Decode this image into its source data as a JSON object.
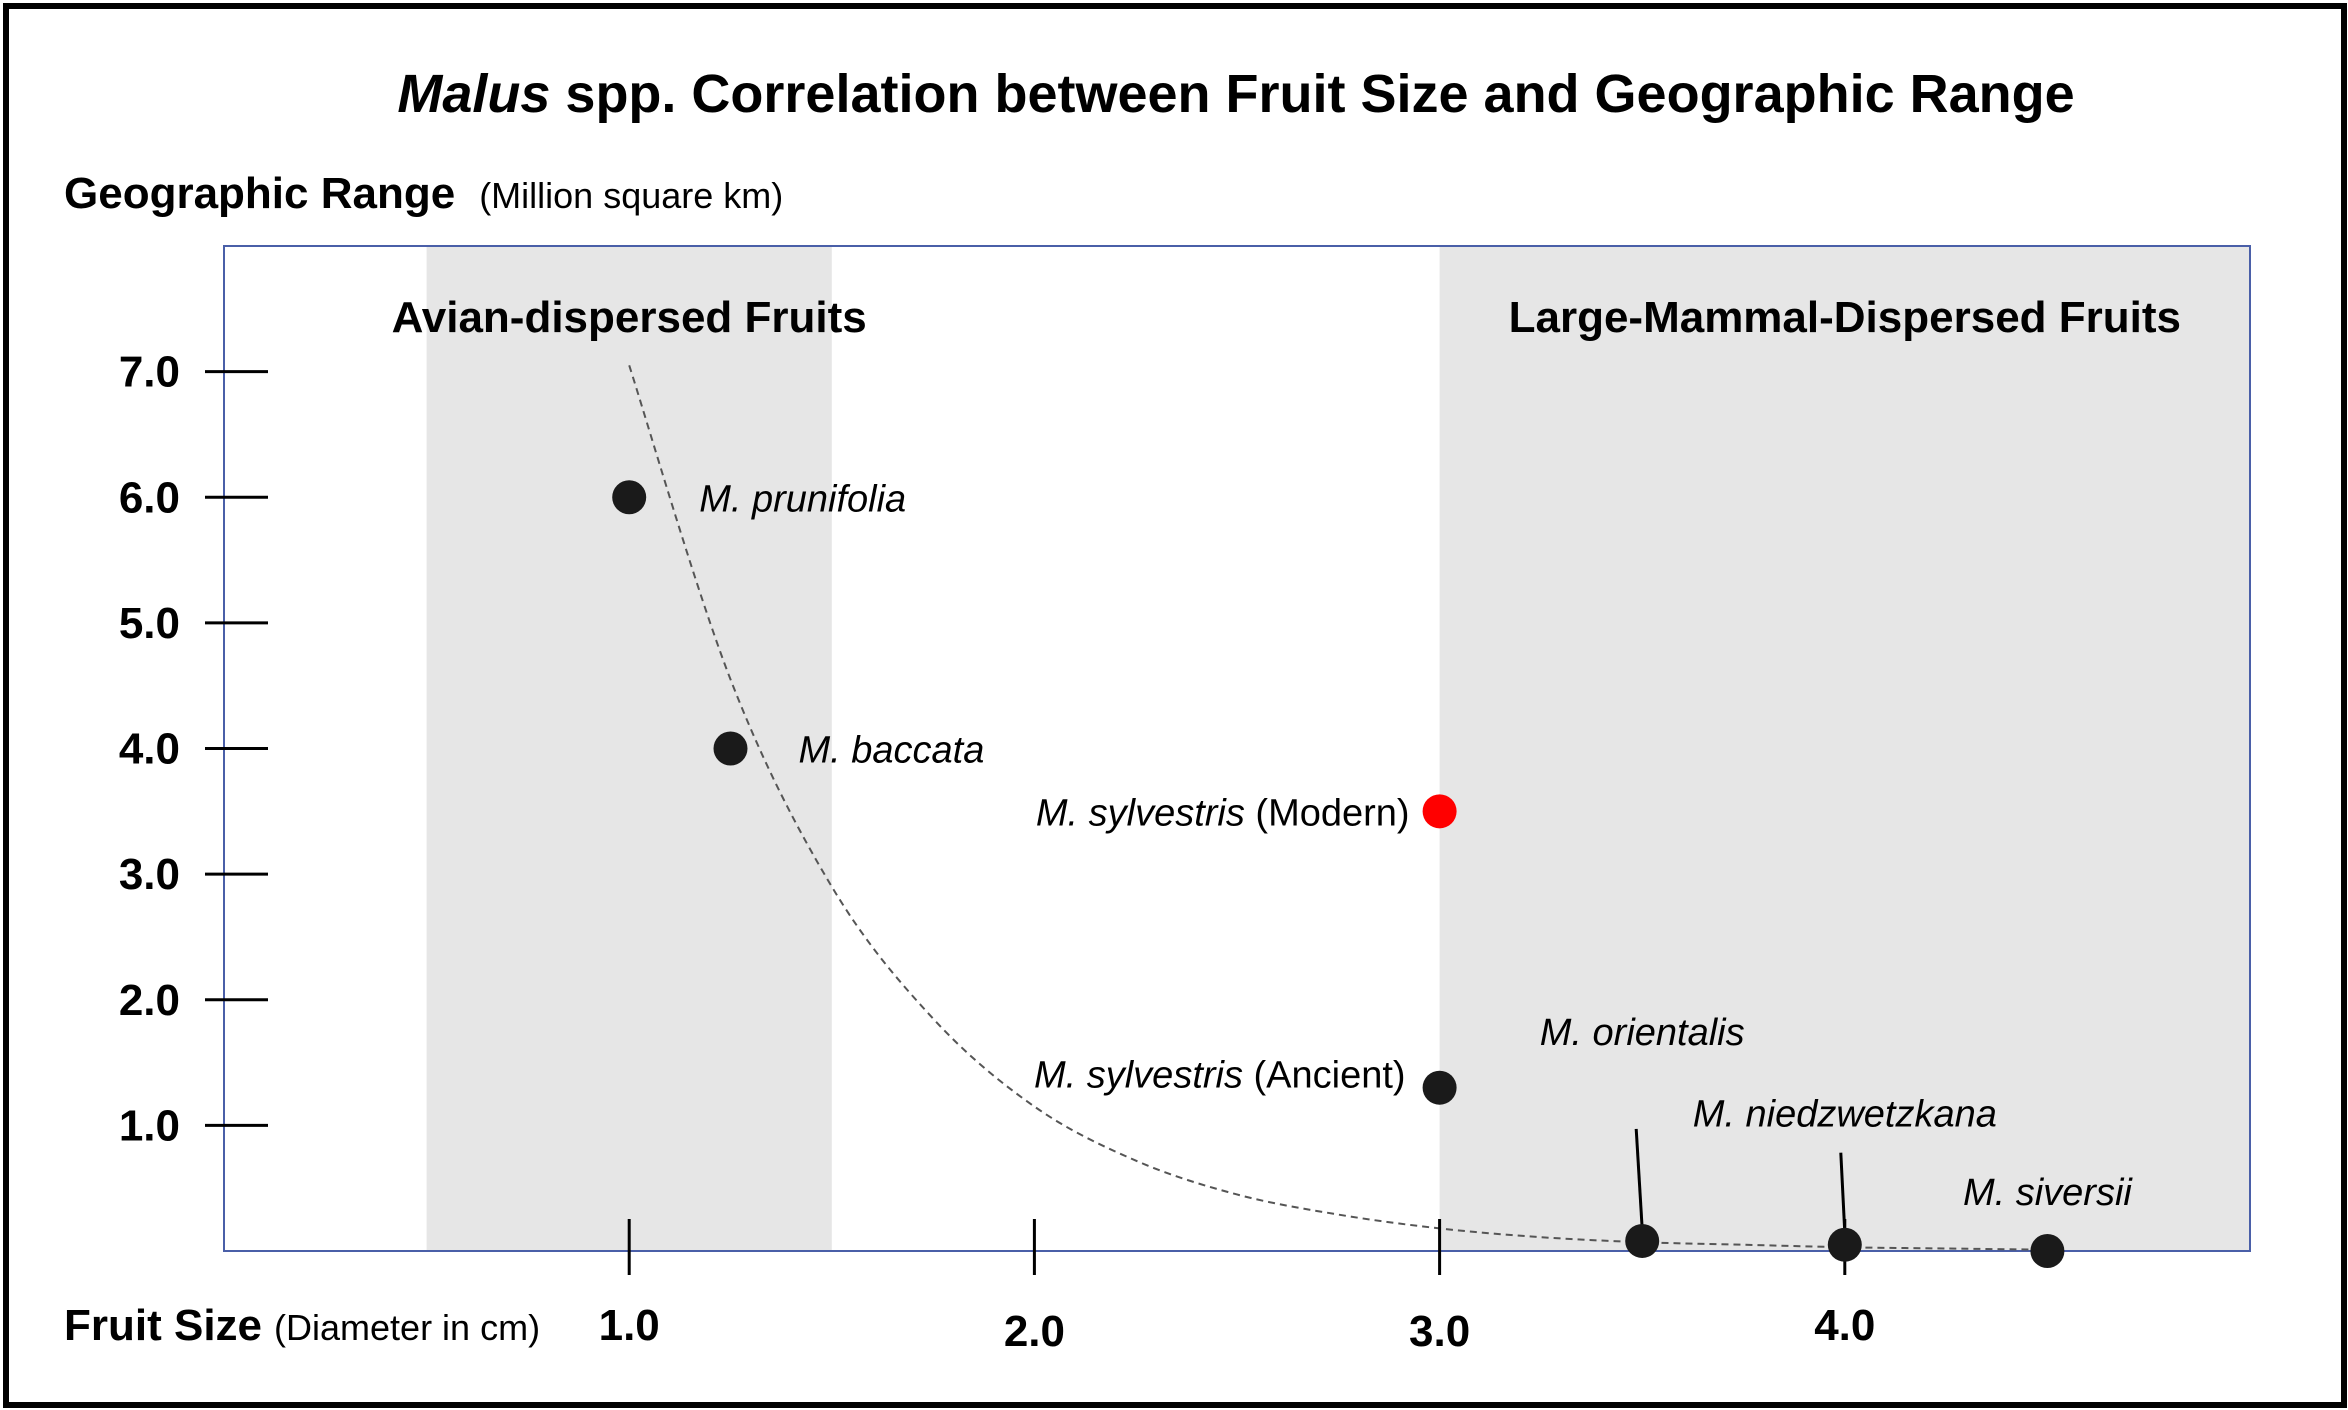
{
  "chart_data": {
    "type": "scatter",
    "title": {
      "italic": "Malus",
      "rest": " spp. Correlation between Fruit Size and Geographic Range"
    },
    "ylabel": "Geographic Range",
    "ylabel_unit": "(Million square km)",
    "xlabel": "Fruit Size",
    "xlabel_unit": "(Diameter in cm)",
    "xlim": [
      0,
      5
    ],
    "ylim": [
      0,
      8
    ],
    "x_ticks": [
      1,
      2,
      3,
      4
    ],
    "x_tick_labels": [
      "1.0",
      "2.0",
      "3.0",
      "4.0"
    ],
    "y_ticks": [
      1,
      2,
      3,
      4,
      5,
      6,
      7
    ],
    "y_tick_labels": [
      "1.0",
      "2.0",
      "3.0",
      "4.0",
      "5.0",
      "6.0",
      "7.0"
    ],
    "regions": [
      {
        "label": "Avian-dispersed Fruits",
        "x_range": [
          0.5,
          1.5
        ]
      },
      {
        "label": "Large-Mammal-Dispersed Fruits",
        "x_range": [
          3.0,
          5.0
        ]
      }
    ],
    "points": [
      {
        "italic": "M. prunifolia",
        "plain": "",
        "x": 1.0,
        "y": 6.0,
        "color": "#1a1a1a"
      },
      {
        "italic": "M. baccata",
        "plain": "",
        "x": 1.25,
        "y": 4.0,
        "color": "#1a1a1a"
      },
      {
        "italic": "M. sylvestris",
        "plain": " (Modern)",
        "x": 3.0,
        "y": 3.5,
        "color": "#ff0000"
      },
      {
        "italic": "M. sylvestris",
        "plain": " (Ancient)",
        "x": 3.0,
        "y": 1.3,
        "color": "#1a1a1a"
      },
      {
        "italic": "M. orientalis",
        "plain": "",
        "x": 3.5,
        "y": 0.08,
        "color": "#1a1a1a"
      },
      {
        "italic": "M. niedzwetzkana",
        "plain": "",
        "x": 4.0,
        "y": 0.05,
        "color": "#1a1a1a"
      },
      {
        "italic": "M. siversii",
        "plain": "",
        "x": 4.5,
        "y": 0.0,
        "color": "#1a1a1a"
      }
    ],
    "trend_line": {
      "style": "dashed",
      "x": [
        1.0,
        1.25,
        1.5,
        1.75,
        2.0,
        2.25,
        2.5,
        2.75,
        3.0,
        3.25,
        3.5,
        3.75,
        4.0,
        4.25,
        4.5
      ],
      "y": [
        7.05,
        4.55,
        2.9,
        1.85,
        1.15,
        0.72,
        0.45,
        0.29,
        0.18,
        0.11,
        0.07,
        0.05,
        0.03,
        0.02,
        0.01
      ]
    },
    "grid": false,
    "legend": "none",
    "colors": {
      "region_fill": "#e6e6e6",
      "plot_border": "#4a5fa8",
      "point": "#1a1a1a",
      "highlight_point": "#ff0000"
    }
  }
}
